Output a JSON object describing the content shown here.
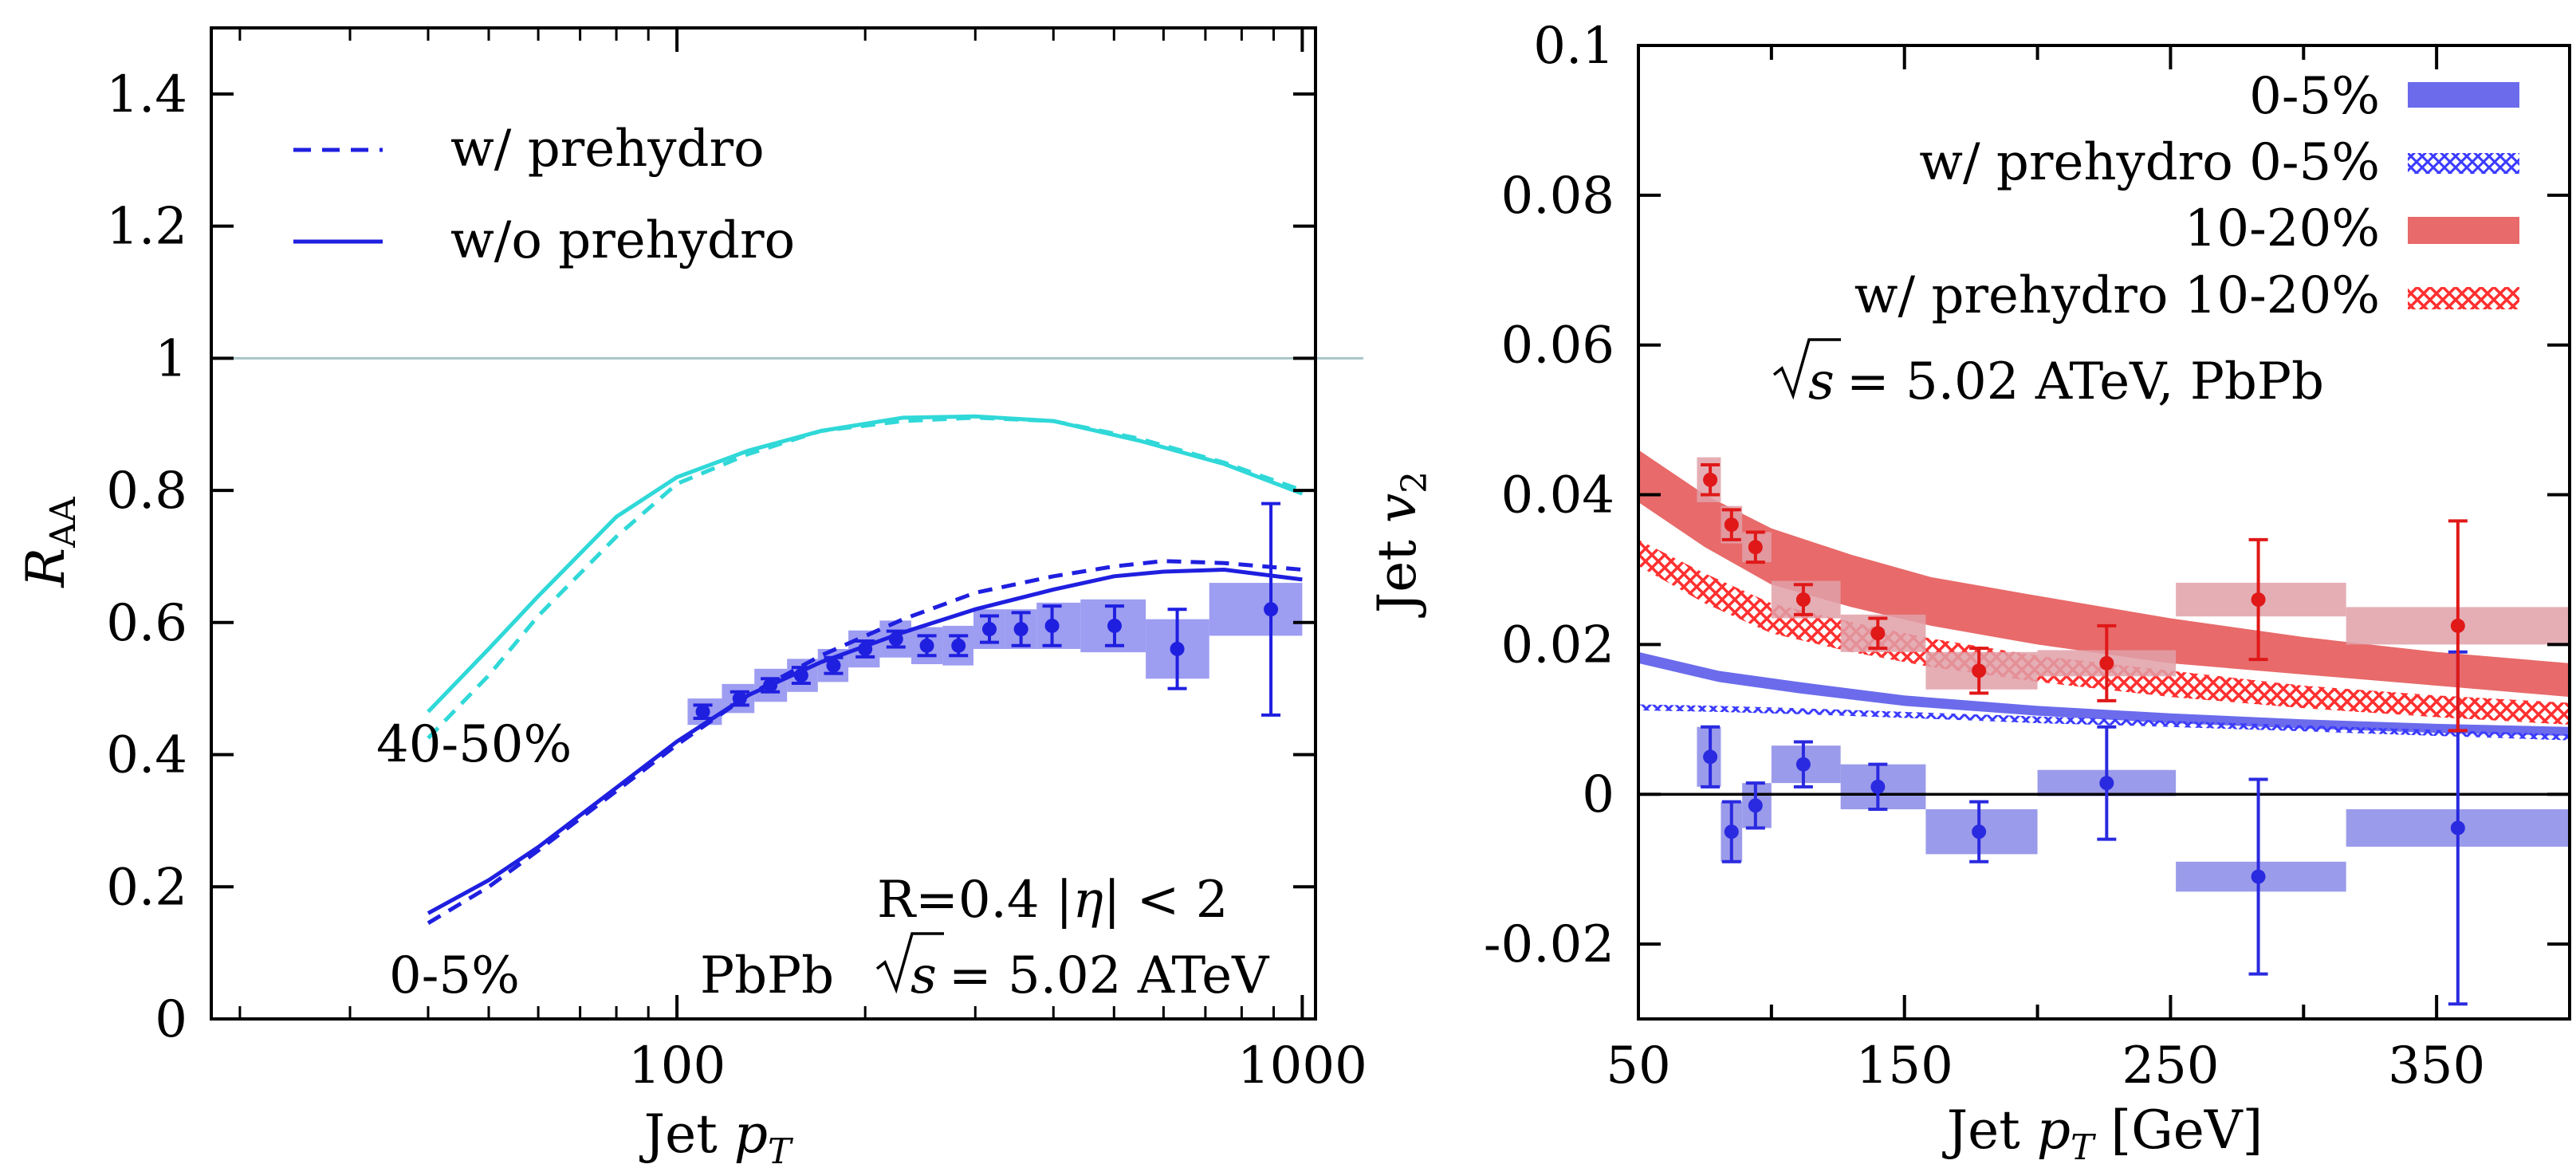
{
  "chart_data": [
    {
      "type": "line",
      "xscale": "log",
      "xlim": [
        18,
        1050
      ],
      "ylim": [
        0,
        1.5
      ],
      "xticks": [
        100,
        1000
      ],
      "yticks": [
        0,
        0.2,
        0.4,
        0.6,
        0.8,
        1,
        1.2,
        1.4
      ],
      "xtick_labels": [
        "100",
        "1000"
      ],
      "ytick_labels": [
        "0",
        "0.2",
        "0.4",
        "0.6",
        "0.8",
        "1",
        "1.2",
        "1.4"
      ],
      "xlabel": "Jet p_T",
      "ylabel": "R_AA",
      "reference_line": 1,
      "legend_placement": "top-left",
      "legend": [
        {
          "label": "w/ prehydro",
          "style": "dashed"
        },
        {
          "label": "w/o prehydro",
          "style": "solid"
        }
      ],
      "annotations": {
        "cent_peripheral": "40-50%",
        "cent_central": "0-5%",
        "cuts": "R=0.4  |η| < 2",
        "system_prefix": "PbPb",
        "energy": "= 5.02 ATeV"
      },
      "colors": {
        "central": "#1f1fe0",
        "peripheral": "#30d8d8",
        "data_box": "#8c8cf0",
        "ref_line": "#a8c4c8"
      },
      "curves": [
        {
          "group": "40-50%",
          "style": "solid",
          "color": "peripheral",
          "x": [
            40,
            50,
            60,
            80,
            100,
            130,
            170,
            230,
            300,
            400,
            550,
            750,
            1000
          ],
          "y": [
            0.465,
            0.56,
            0.64,
            0.76,
            0.82,
            0.86,
            0.89,
            0.91,
            0.912,
            0.905,
            0.875,
            0.84,
            0.795
          ]
        },
        {
          "group": "40-50%",
          "style": "dashed",
          "color": "peripheral",
          "x": [
            40,
            50,
            60,
            80,
            100,
            130,
            170,
            230,
            300,
            400,
            550,
            750,
            1000
          ],
          "y": [
            0.425,
            0.52,
            0.61,
            0.73,
            0.81,
            0.855,
            0.89,
            0.905,
            0.91,
            0.905,
            0.878,
            0.842,
            0.8
          ]
        },
        {
          "group": "0-5%",
          "style": "solid",
          "color": "central",
          "x": [
            40,
            50,
            60,
            80,
            100,
            130,
            170,
            230,
            300,
            400,
            500,
            600,
            750,
            1000
          ],
          "y": [
            0.16,
            0.21,
            0.26,
            0.35,
            0.42,
            0.49,
            0.54,
            0.585,
            0.62,
            0.65,
            0.67,
            0.677,
            0.68,
            0.665
          ]
        },
        {
          "group": "0-5%",
          "style": "dashed",
          "color": "central",
          "x": [
            40,
            50,
            60,
            80,
            100,
            130,
            170,
            230,
            300,
            400,
            500,
            600,
            750,
            1000
          ],
          "y": [
            0.145,
            0.2,
            0.255,
            0.345,
            0.415,
            0.49,
            0.55,
            0.605,
            0.645,
            0.67,
            0.685,
            0.693,
            0.69,
            0.68
          ]
        }
      ],
      "data_points": {
        "x": [
          110,
          126,
          141,
          158,
          178,
          200,
          224,
          251,
          282,
          316,
          355,
          398,
          501,
          631,
          891
        ],
        "y": [
          0.465,
          0.485,
          0.505,
          0.52,
          0.535,
          0.56,
          0.575,
          0.565,
          0.565,
          0.59,
          0.59,
          0.595,
          0.595,
          0.56,
          0.62
        ],
        "yerr": [
          0.01,
          0.01,
          0.01,
          0.012,
          0.012,
          0.012,
          0.012,
          0.015,
          0.015,
          0.02,
          0.025,
          0.03,
          0.03,
          0.06,
          0.16
        ],
        "box_xlo": [
          104,
          118,
          133,
          150,
          168,
          188,
          211,
          237,
          266,
          298,
          335,
          376,
          442,
          562,
          710
        ],
        "box_xhi": [
          118,
          133,
          150,
          168,
          188,
          211,
          237,
          266,
          298,
          335,
          376,
          442,
          562,
          710,
          1000
        ],
        "box_h": [
          0.02,
          0.022,
          0.025,
          0.025,
          0.025,
          0.028,
          0.028,
          0.028,
          0.03,
          0.03,
          0.03,
          0.035,
          0.04,
          0.045,
          0.04
        ]
      }
    },
    {
      "type": "area",
      "xlim": [
        50,
        400
      ],
      "ylim": [
        -0.03,
        0.1
      ],
      "xticks": [
        50,
        150,
        250,
        350
      ],
      "yticks": [
        -0.02,
        0,
        0.02,
        0.04,
        0.06,
        0.08,
        0.1
      ],
      "xtick_labels": [
        "50",
        "150",
        "250",
        "350"
      ],
      "ytick_labels": [
        "-0.02",
        "0",
        "0.02",
        "0.04",
        "0.06",
        "0.08",
        "0.1"
      ],
      "xlabel_prefix": "Jet",
      "xlabel_suffix": "[GeV]",
      "ylabel": "Jet v_2",
      "annotation_energy": "= 5.02 ATeV, PbPb",
      "legend_placement": "top-right",
      "legend": [
        {
          "label": "0-5%",
          "style": "band",
          "color": "#6b6bec"
        },
        {
          "label": "w/ prehydro 0-5%",
          "style": "hatch",
          "color": "#3a3aff"
        },
        {
          "label": "10-20%",
          "style": "band",
          "color": "#e86a6a"
        },
        {
          "label": "w/ prehydro 10-20%",
          "style": "hatch",
          "color": "#ff3030"
        }
      ],
      "bands": [
        {
          "name": "0-5%",
          "style": "band",
          "color": "#6b6bec",
          "x": [
            50,
            80,
            110,
            150,
            200,
            250,
            300,
            350,
            400
          ],
          "lo": [
            0.0175,
            0.015,
            0.0135,
            0.0118,
            0.0105,
            0.0095,
            0.0088,
            0.0082,
            0.0078
          ],
          "hi": [
            0.019,
            0.0165,
            0.015,
            0.0132,
            0.0118,
            0.0108,
            0.01,
            0.0094,
            0.009
          ]
        },
        {
          "name": "w/ prehydro 0-5%",
          "style": "hatch",
          "color": "#3a3aff",
          "x": [
            50,
            80,
            110,
            150,
            200,
            250,
            300,
            350,
            400
          ],
          "lo": [
            0.0112,
            0.011,
            0.0107,
            0.0102,
            0.0095,
            0.009,
            0.0084,
            0.0078,
            0.0072
          ],
          "hi": [
            0.012,
            0.0118,
            0.0115,
            0.011,
            0.0104,
            0.0098,
            0.0092,
            0.0086,
            0.008
          ]
        },
        {
          "name": "10-20%",
          "style": "band",
          "color": "#e86a6a",
          "x": [
            50,
            75,
            100,
            130,
            160,
            200,
            250,
            300,
            350,
            400
          ],
          "lo": [
            0.039,
            0.033,
            0.028,
            0.025,
            0.0225,
            0.02,
            0.0175,
            0.016,
            0.0145,
            0.013
          ],
          "hi": [
            0.046,
            0.04,
            0.0355,
            0.032,
            0.029,
            0.0265,
            0.0235,
            0.021,
            0.019,
            0.0175
          ]
        },
        {
          "name": "w/ prehydro 10-20%",
          "style": "hatch",
          "color": "#ff3030",
          "x": [
            50,
            75,
            100,
            130,
            160,
            200,
            250,
            300,
            350,
            400
          ],
          "lo": [
            0.0305,
            0.0255,
            0.0215,
            0.019,
            0.017,
            0.015,
            0.013,
            0.0115,
            0.0103,
            0.0093
          ],
          "hi": [
            0.034,
            0.0295,
            0.0255,
            0.023,
            0.0208,
            0.0185,
            0.0165,
            0.0145,
            0.0132,
            0.0122
          ]
        }
      ],
      "data_series": [
        {
          "name": "0-5%",
          "color": "#2a2ae0",
          "box_color": "#8a8ae8",
          "x": [
            77,
            85,
            94,
            112,
            140,
            178,
            226,
            283,
            358
          ],
          "y": [
            0.005,
            -0.005,
            -0.0015,
            0.004,
            0.001,
            -0.005,
            0.0015,
            -0.011,
            -0.0045
          ],
          "yerr": [
            0.004,
            0.004,
            0.003,
            0.003,
            0.003,
            0.004,
            0.0075,
            0.013,
            0.0235
          ],
          "box_xlo": [
            72,
            81,
            89,
            100,
            126,
            158,
            200,
            252,
            316
          ],
          "box_xhi": [
            81,
            89,
            100,
            126,
            158,
            200,
            252,
            316,
            400
          ],
          "box_h": [
            0.008,
            0.008,
            0.006,
            0.005,
            0.006,
            0.006,
            0.0035,
            0.004,
            0.005
          ]
        },
        {
          "name": "10-20%",
          "color": "#e01818",
          "box_color": "#e0a0a8",
          "x": [
            77,
            85,
            94,
            112,
            140,
            178,
            226,
            283,
            358
          ],
          "y": [
            0.042,
            0.036,
            0.033,
            0.026,
            0.0215,
            0.0165,
            0.0175,
            0.026,
            0.0225
          ],
          "yerr": [
            0.002,
            0.002,
            0.002,
            0.002,
            0.002,
            0.003,
            0.005,
            0.008,
            0.014
          ],
          "box_xlo": [
            72,
            81,
            89,
            100,
            126,
            158,
            200,
            252,
            316
          ],
          "box_xhi": [
            81,
            89,
            100,
            126,
            158,
            200,
            252,
            316,
            400
          ],
          "box_h": [
            0.006,
            0.005,
            0.004,
            0.005,
            0.005,
            0.005,
            0.0035,
            0.0045,
            0.005
          ]
        }
      ]
    }
  ]
}
